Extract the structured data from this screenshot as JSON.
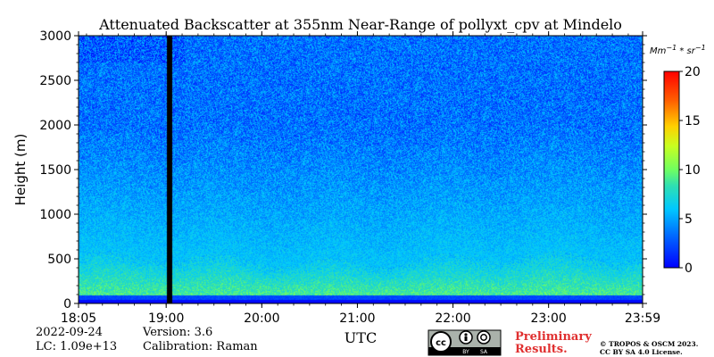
{
  "chart_data": {
    "type": "heatmap",
    "title": "Attenuated Backscatter at 355nm Near-Range of pollyxt_cpv at Mindelo",
    "ylabel": "Height (m)",
    "xlabel": "UTC",
    "ylim": [
      0,
      3000
    ],
    "yticks": [
      0,
      500,
      1000,
      1500,
      2000,
      2500,
      3000
    ],
    "xlim": [
      "18:05",
      "23:59"
    ],
    "xticks": [
      "18:05",
      "19:00",
      "20:00",
      "21:00",
      "22:00",
      "23:00",
      "23:59"
    ],
    "colorbar": {
      "unit": "Mm^-1*sr^-1",
      "range": [
        0,
        20
      ],
      "ticks": [
        0,
        5,
        10,
        15,
        20
      ],
      "colormap": "jet"
    },
    "approx_field": {
      "blind_zone_top_m": 50,
      "near_ground_layer_m": [
        50,
        100
      ],
      "bright_layer_top_m": 500,
      "surface_layer_value": 9,
      "aloft_value": 4,
      "missing_data_time": "19:02"
    }
  },
  "footer": {
    "date": "2022-09-24",
    "lc": "LC: 1.09e+13",
    "version": "Version: 3.6",
    "calibration": "Calibration: Raman",
    "preliminary_1": "Preliminary",
    "preliminary_2": "Results.",
    "copyright_1": "© TROPOS & OSCM 2023.",
    "copyright_2": "CC BY SA 4.0 License.",
    "license_badge": {
      "cc": "cc",
      "by": "BY",
      "sa": "SA"
    }
  }
}
